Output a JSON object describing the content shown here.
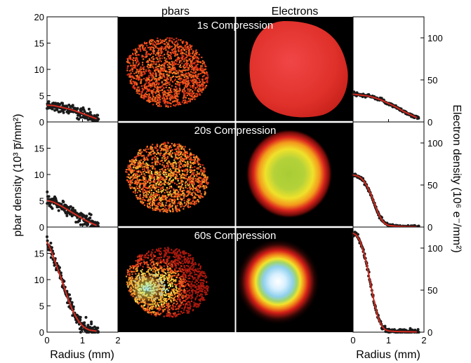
{
  "figure": {
    "col_header_left": "pbars",
    "col_header_right": "Electrons",
    "row_titles": [
      "1s Compression",
      "20s Compression",
      "60s Compression"
    ],
    "left_ylabel": "pbar density (10³ p̅/mm²)",
    "right_ylabel": "Electron density (10⁶ e⁻/mm²)",
    "left_xlabel": "Radius (mm)",
    "right_xlabel": "Radius (mm)"
  },
  "chart_data": [
    {
      "type": "scatter",
      "panel": "pbar-profile",
      "row_title": "1s Compression",
      "xlim": [
        0,
        2
      ],
      "ylim": [
        0,
        20
      ],
      "xticks": [
        0,
        1,
        2
      ],
      "yticks": [
        0,
        5,
        10,
        15,
        20
      ],
      "fit_curve": {
        "x": [
          0,
          0.2,
          0.4,
          0.6,
          0.8,
          1.0,
          1.2,
          1.4
        ],
        "y": [
          3.2,
          3.1,
          2.8,
          2.5,
          2.1,
          1.6,
          1.1,
          0.6
        ]
      },
      "points": {
        "x_range": [
          0,
          1.45
        ],
        "y_scatter": 0.6
      }
    },
    {
      "type": "scatter",
      "panel": "pbar-profile",
      "row_title": "20s Compression",
      "xlim": [
        0,
        2
      ],
      "ylim": [
        0,
        20
      ],
      "xticks": [
        0,
        1,
        2
      ],
      "yticks": [
        0,
        5,
        10,
        15
      ],
      "fit_curve": {
        "x": [
          0,
          0.2,
          0.4,
          0.6,
          0.8,
          1.0,
          1.2,
          1.4
        ],
        "y": [
          5.1,
          4.7,
          4.0,
          3.2,
          2.4,
          1.6,
          0.9,
          0.3
        ]
      },
      "points": {
        "x_range": [
          0,
          1.45
        ],
        "y_scatter": 0.7
      }
    },
    {
      "type": "scatter",
      "panel": "pbar-profile",
      "row_title": "60s Compression",
      "xlim": [
        0,
        2
      ],
      "ylim": [
        0,
        20
      ],
      "xticks": [
        0,
        1,
        2
      ],
      "yticks": [
        0,
        5,
        10,
        15
      ],
      "fit_curve": {
        "x": [
          0,
          0.1,
          0.2,
          0.3,
          0.4,
          0.5,
          0.6,
          0.7,
          0.8,
          0.9,
          1.0,
          1.1,
          1.2,
          1.4
        ],
        "y": [
          17.2,
          15.8,
          14.0,
          12.0,
          10.2,
          8.2,
          6.2,
          4.5,
          3.1,
          2.0,
          1.2,
          0.7,
          0.4,
          0.2
        ]
      },
      "points": {
        "x_range": [
          0,
          1.45
        ],
        "y_scatter": 0.9
      }
    },
    {
      "type": "scatter",
      "panel": "electron-profile",
      "row_title": "1s Compression",
      "xlim": [
        0,
        2
      ],
      "ylim": [
        0,
        125
      ],
      "xticks": [
        0,
        1,
        2
      ],
      "yticks": [
        0,
        50,
        100
      ],
      "fit_curve": {
        "x": [
          0,
          0.2,
          0.4,
          0.6,
          0.8,
          1.0,
          1.2,
          1.4,
          1.6,
          1.8
        ],
        "y": [
          33,
          32,
          31,
          29,
          26,
          22,
          18,
          13,
          9,
          5
        ]
      },
      "points": {
        "x_range": [
          0,
          1.85
        ],
        "y_scatter": 1.2
      }
    },
    {
      "type": "scatter",
      "panel": "electron-profile",
      "row_title": "20s Compression",
      "xlim": [
        0,
        2
      ],
      "ylim": [
        0,
        125
      ],
      "xticks": [
        0,
        1,
        2
      ],
      "yticks": [
        0,
        50,
        100
      ],
      "fit_curve": {
        "x": [
          0,
          0.1,
          0.2,
          0.3,
          0.4,
          0.5,
          0.6,
          0.7,
          0.8,
          0.9,
          1.0,
          1.2,
          1.5,
          1.8
        ],
        "y": [
          62,
          61,
          59,
          55,
          48,
          39,
          28,
          17,
          9,
          4,
          2,
          1,
          0.5,
          0.3
        ]
      },
      "points": {
        "x_range": [
          0,
          1.85
        ],
        "y_scatter": 1.5
      }
    },
    {
      "type": "scatter",
      "panel": "electron-profile",
      "row_title": "60s Compression",
      "xlim": [
        0,
        2
      ],
      "ylim": [
        0,
        125
      ],
      "xticks": [
        0,
        1,
        2
      ],
      "yticks": [
        0,
        50,
        100
      ],
      "fit_curve": {
        "x": [
          0,
          0.1,
          0.2,
          0.3,
          0.4,
          0.5,
          0.6,
          0.7,
          0.8,
          0.9,
          1.0,
          1.2,
          1.5,
          1.8
        ],
        "y": [
          118,
          115,
          108,
          95,
          78,
          56,
          35,
          18,
          8,
          3,
          1.5,
          0.8,
          0.5,
          0.3
        ]
      },
      "points": {
        "x_range": [
          0,
          1.85
        ],
        "y_scatter": 2.0
      }
    }
  ],
  "images": {
    "pbar_cloud": [
      {
        "row_title": "1s Compression",
        "peak_level": 0.35
      },
      {
        "row_title": "20s Compression",
        "peak_level": 0.5
      },
      {
        "row_title": "60s Compression",
        "peak_level": 0.95
      }
    ],
    "electron_cloud": [
      {
        "row_title": "1s Compression",
        "style": "uniform-red"
      },
      {
        "row_title": "20s Compression",
        "style": "green-yellow-core"
      },
      {
        "row_title": "60s Compression",
        "style": "white-blue-core"
      }
    ]
  },
  "colors": {
    "fit_line": "#d42a1e",
    "data_point": "#1a1a1a",
    "image_background": "#000000"
  }
}
